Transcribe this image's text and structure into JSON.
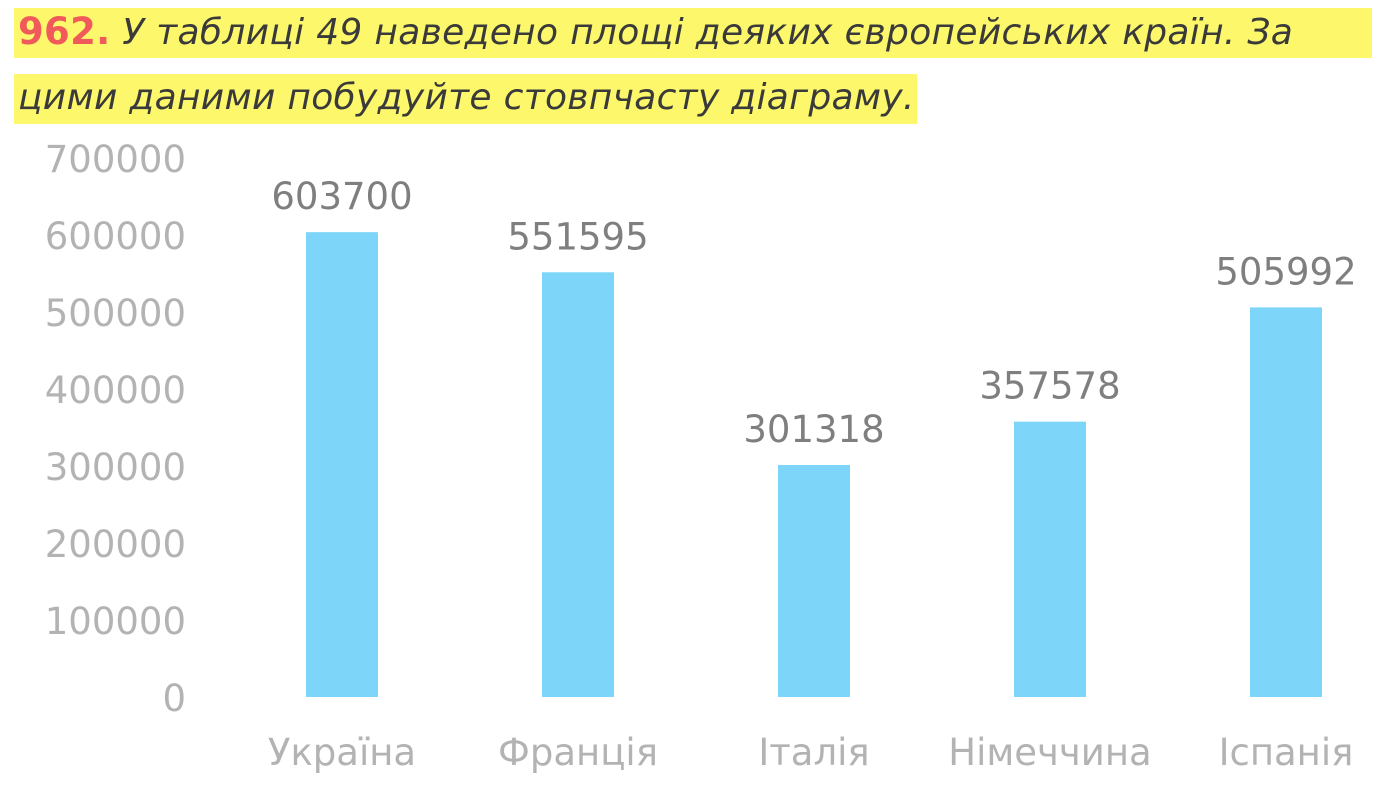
{
  "task": {
    "number": "962.",
    "line1": "У таблиці 49 наведено площі деяких європейських країн. За",
    "line2": "цими даними побудуйте стовпчасту діаграму."
  },
  "chart_data": {
    "type": "bar",
    "categories": [
      "Україна",
      "Франція",
      "Італія",
      "Німеччина",
      "Іспанія"
    ],
    "values": [
      603700,
      551595,
      301318,
      357578,
      505992
    ],
    "data_labels": [
      "603700",
      "551595",
      "301318",
      "357578",
      "505992"
    ],
    "yticks": [
      0,
      100000,
      200000,
      300000,
      400000,
      500000,
      600000,
      700000
    ],
    "ytick_labels": [
      "0",
      "100000",
      "200000",
      "300000",
      "400000",
      "500000",
      "600000",
      "700000"
    ],
    "ylim": [
      0,
      700000
    ],
    "grid": false,
    "legend": "none",
    "bar_color": "#7dd6fa",
    "text_color": "#7f7f7f",
    "tick_color": "#b3b3b3"
  }
}
